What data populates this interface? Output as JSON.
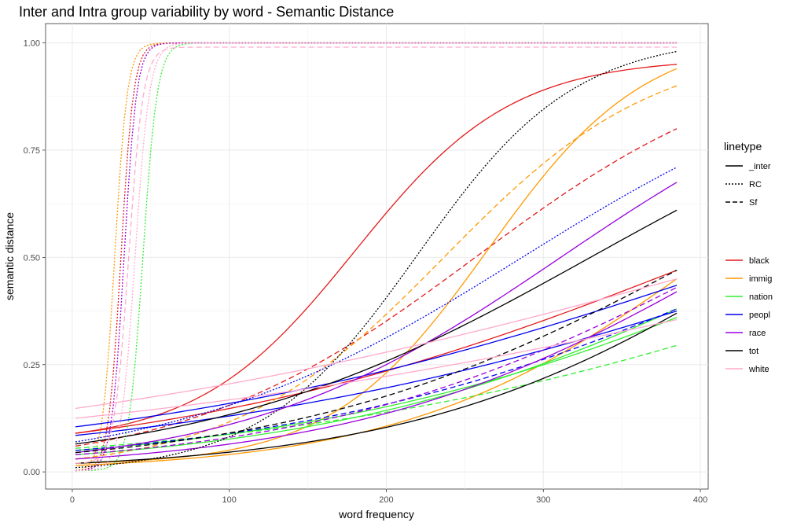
{
  "chart_data": {
    "type": "line",
    "title": "Inter and Intra group variability by word - Semantic Distance",
    "xlabel": "word frequency",
    "ylabel": "semantic distance",
    "xlim": [
      -17,
      405
    ],
    "ylim": [
      -0.04,
      1.045
    ],
    "xticks": [
      0,
      100,
      200,
      300,
      400
    ],
    "xtick_labels": [
      "0",
      "100",
      "200",
      "300",
      "400"
    ],
    "yticks": [
      0,
      0.25,
      0.5,
      0.75,
      1.0
    ],
    "ytick_labels": [
      "0.00",
      "0.25",
      "0.50",
      "0.75",
      "1.00"
    ],
    "grid": true,
    "legend_position": "right",
    "linetype_legend": {
      "title": "linetype",
      "entries": [
        {
          "label": "_inter",
          "dash": "solid"
        },
        {
          "label": "RC",
          "dash": "dotted"
        },
        {
          "label": "Sf",
          "dash": "dashed"
        }
      ]
    },
    "color_legend": {
      "entries": [
        {
          "label": "black",
          "color": "#e41a1c"
        },
        {
          "label": "immig",
          "color": "#ff9900"
        },
        {
          "label": "nation",
          "color": "#33ee33"
        },
        {
          "label": "peopl",
          "color": "#0000ee"
        },
        {
          "label": "race",
          "color": "#9900dd"
        },
        {
          "label": "tot",
          "color": "#000000"
        },
        {
          "label": "white",
          "color": "#ffaacc"
        }
      ]
    },
    "x_range": [
      2,
      385
    ],
    "series": [
      {
        "word": "black",
        "linetype": "RC",
        "y_start": 0.003,
        "y_end": 1.0,
        "mid": 31,
        "steep": 0.25
      },
      {
        "word": "black",
        "linetype": "_inter",
        "y_start": 0.09,
        "y_end": 0.95,
        "mid": 180
      },
      {
        "word": "black",
        "linetype": "_inter",
        "y_start": 0.09,
        "y_end": 0.47
      },
      {
        "word": "black",
        "linetype": "Sf",
        "y_start": 0.06,
        "y_end": 0.8
      },
      {
        "word": "immig",
        "linetype": "RC",
        "y_start": 0.003,
        "y_end": 1.0,
        "mid": 27,
        "steep": 0.25
      },
      {
        "word": "immig",
        "linetype": "_inter",
        "y_start": 0.02,
        "y_end": 0.94,
        "mid": 265
      },
      {
        "word": "immig",
        "linetype": "_inter",
        "y_start": 0.015,
        "y_end": 0.45
      },
      {
        "word": "immig",
        "linetype": "Sf",
        "y_start": 0.03,
        "y_end": 0.9
      },
      {
        "word": "nation",
        "linetype": "RC",
        "y_start": 0.003,
        "y_end": 1.0,
        "mid": 45,
        "steep": 0.22
      },
      {
        "word": "nation",
        "linetype": "_inter",
        "y_start": 0.04,
        "y_end": 0.38
      },
      {
        "word": "nation",
        "linetype": "_inter",
        "y_start": 0.05,
        "y_end": 0.36
      },
      {
        "word": "nation",
        "linetype": "Sf",
        "y_start": 0.055,
        "y_end": 0.295
      },
      {
        "word": "peopl",
        "linetype": "RC",
        "y_start": 0.07,
        "y_end": 0.71
      },
      {
        "word": "peopl",
        "linetype": "_inter",
        "y_start": 0.105,
        "y_end": 0.435
      },
      {
        "word": "peopl",
        "linetype": "_inter",
        "y_start": 0.085,
        "y_end": 0.375
      },
      {
        "word": "peopl",
        "linetype": "Sf",
        "y_start": 0.05,
        "y_end": 0.38
      },
      {
        "word": "race",
        "linetype": "RC",
        "y_start": 0.003,
        "y_end": 1.0,
        "mid": 33,
        "steep": 0.25
      },
      {
        "word": "race",
        "linetype": "_inter",
        "y_start": 0.045,
        "y_end": 0.675
      },
      {
        "word": "race",
        "linetype": "_inter",
        "y_start": 0.03,
        "y_end": 0.42
      },
      {
        "word": "race",
        "linetype": "Sf",
        "y_start": 0.04,
        "y_end": 0.43
      },
      {
        "word": "tot",
        "linetype": "RC",
        "y_start": 0.01,
        "y_end": 0.98,
        "mid": 220
      },
      {
        "word": "tot",
        "linetype": "_inter",
        "y_start": 0.065,
        "y_end": 0.61
      },
      {
        "word": "tot",
        "linetype": "_inter",
        "y_start": 0.02,
        "y_end": 0.37
      },
      {
        "word": "tot",
        "linetype": "Sf",
        "y_start": 0.045,
        "y_end": 0.47
      },
      {
        "word": "white",
        "linetype": "RC",
        "y_start": 0.003,
        "y_end": 1.0,
        "mid": 40,
        "steep": 0.22
      },
      {
        "word": "white",
        "linetype": "_inter",
        "y_start": 0.148,
        "y_end": 0.45
      },
      {
        "word": "white",
        "linetype": "_inter",
        "y_start": 0.125,
        "y_end": 0.355
      },
      {
        "word": "white",
        "linetype": "Sf",
        "y_start": 0.02,
        "y_end": 0.99,
        "mid": 36,
        "steep": 0.22
      }
    ]
  }
}
